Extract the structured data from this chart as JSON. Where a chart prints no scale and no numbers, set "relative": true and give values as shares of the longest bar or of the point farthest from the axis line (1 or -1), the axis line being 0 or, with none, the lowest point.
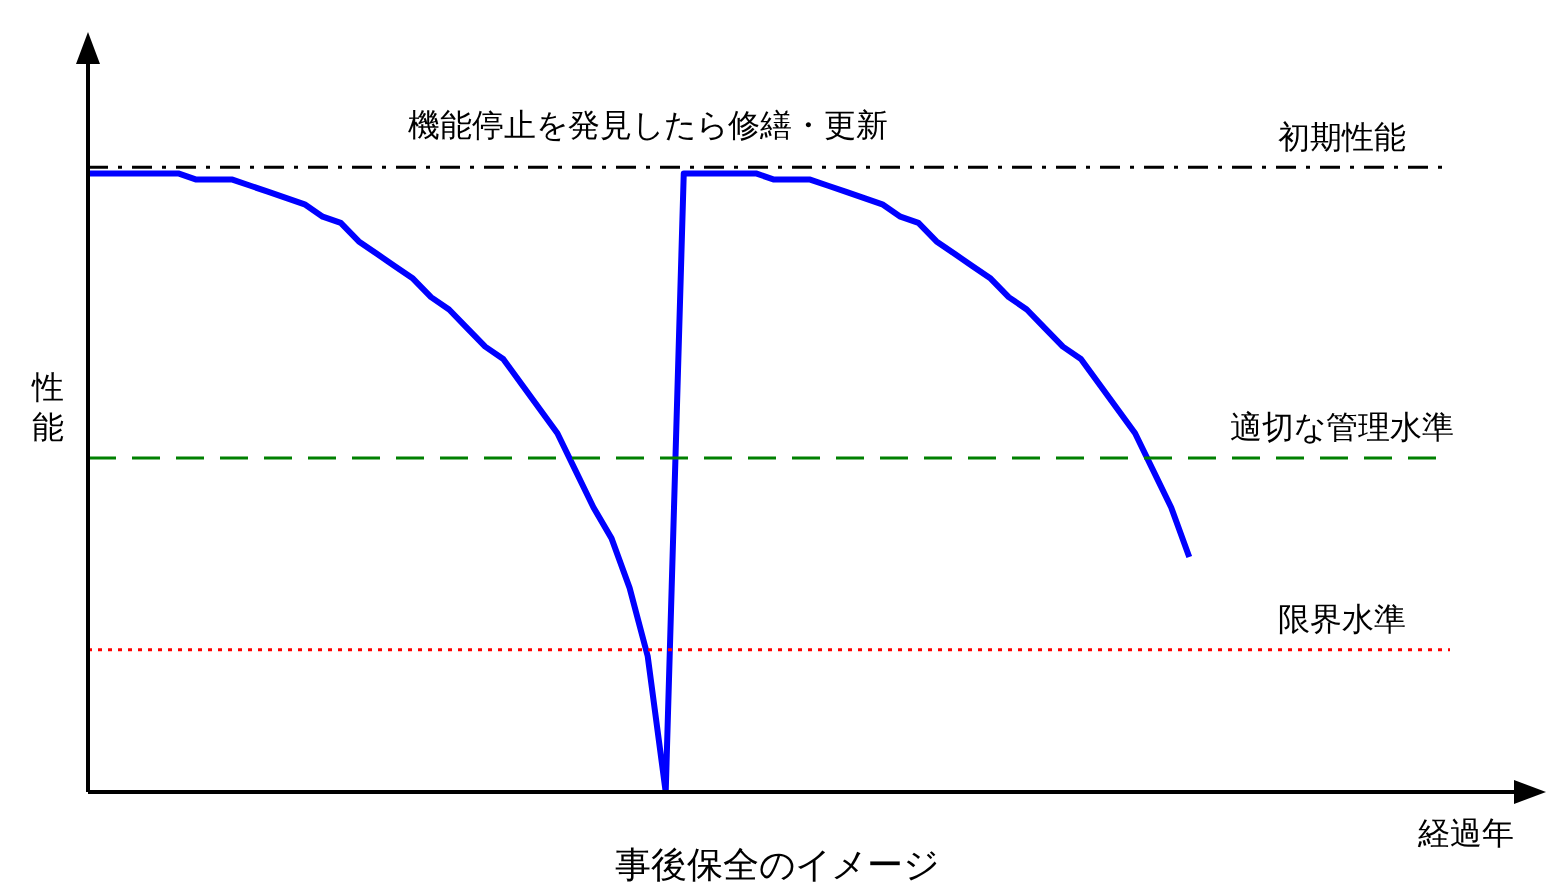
{
  "chart_data": {
    "type": "line",
    "relative": true,
    "legend": false,
    "xlabel": "経過年",
    "ylabel": "性能",
    "categories": [
      null,
      null,
      null,
      null,
      null,
      null,
      null,
      null,
      null,
      null,
      null,
      null,
      null,
      null,
      null,
      null,
      null,
      null,
      null,
      null,
      null,
      null,
      null,
      null,
      null,
      null,
      null,
      null,
      null,
      null,
      null,
      null,
      null,
      null,
      null,
      null,
      null,
      null,
      null,
      null,
      null,
      null,
      null,
      null,
      null,
      null,
      null,
      null,
      null,
      null,
      null,
      null,
      null,
      null,
      null,
      null,
      null,
      null,
      null,
      null,
      null,
      null,
      null,
      null,
      null,
      null,
      null,
      null,
      null,
      null,
      null,
      null,
      null,
      null,
      null,
      null
    ],
    "series": [
      {
        "color": "#0000ff",
        "values": [
          1,
          1,
          1,
          1,
          1,
          1,
          0.99,
          0.99,
          0.99,
          0.98,
          0.97,
          0.96,
          0.95,
          0.93,
          0.92,
          0.89,
          0.87,
          0.85,
          0.83,
          0.8,
          0.78,
          0.75,
          0.72,
          0.7,
          0.66,
          0.62,
          0.58,
          0.52,
          0.46,
          0.41,
          0.33,
          0.22,
          0,
          1,
          1,
          1,
          1,
          1,
          0.99,
          0.99,
          0.99,
          0.98,
          0.97,
          0.96,
          0.95,
          0.93,
          0.92,
          0.89,
          0.87,
          0.85,
          0.83,
          0.8,
          0.78,
          0.75,
          0.72,
          0.7,
          0.66,
          0.62,
          0.58,
          0.52,
          0.46,
          0.38,
          null,
          null,
          null,
          null,
          null,
          null,
          null,
          null,
          null,
          null,
          null,
          null,
          null,
          null
        ]
      }
    ],
    "ref_lines": [
      {
        "axis": "y",
        "value": 1.01,
        "label": "初期性能",
        "color": "#000000",
        "line_style": "dashdot"
      },
      {
        "axis": "y",
        "value": 0.54,
        "label": "適切な管理水準",
        "color": "#008000",
        "line_style": "dashed"
      },
      {
        "axis": "y",
        "value": 0.23,
        "label": "限界水準",
        "color": "#ff0000",
        "line_style": "dotted"
      }
    ],
    "annotations": [
      "機能停止を発見したら修繕・更新",
      "事後保全のイメージ"
    ]
  }
}
